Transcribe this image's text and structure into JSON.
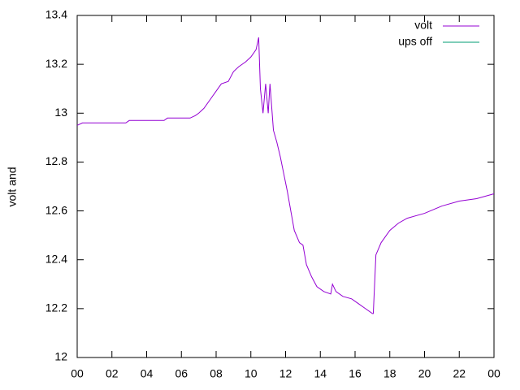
{
  "chart_data": {
    "type": "line",
    "ylabel": "volt and",
    "x": [
      0,
      0.3,
      1,
      2,
      2.8,
      3,
      4,
      5,
      5.2,
      6,
      6.5,
      6.8,
      7,
      7.3,
      7.6,
      8,
      8.3,
      8.7,
      9,
      9.3,
      9.7,
      10,
      10.3,
      10.45,
      10.55,
      10.7,
      10.85,
      11,
      11.1,
      11.3,
      11.5,
      11.7,
      11.9,
      12.1,
      12.3,
      12.5,
      12.8,
      13,
      13.2,
      13.5,
      13.8,
      14.2,
      14.6,
      14.7,
      14.9,
      15.3,
      15.8,
      16.2,
      16.6,
      17,
      17.05,
      17.2,
      17.5,
      18,
      18.5,
      19,
      20,
      21,
      22,
      23,
      24
    ],
    "series": [
      {
        "name": "volt",
        "color": "#9400d3",
        "values": [
          12.95,
          12.96,
          12.96,
          12.96,
          12.96,
          12.97,
          12.97,
          12.97,
          12.98,
          12.98,
          12.98,
          12.99,
          13.0,
          13.02,
          13.05,
          13.09,
          13.12,
          13.13,
          13.17,
          13.19,
          13.21,
          13.23,
          13.26,
          13.31,
          13.1,
          13.0,
          13.12,
          13.0,
          13.12,
          12.93,
          12.88,
          12.82,
          12.75,
          12.68,
          12.6,
          12.52,
          12.47,
          12.46,
          12.38,
          12.33,
          12.29,
          12.27,
          12.26,
          12.3,
          12.27,
          12.25,
          12.24,
          12.22,
          12.2,
          12.18,
          12.18,
          12.42,
          12.47,
          12.52,
          12.55,
          12.57,
          12.59,
          12.62,
          12.64,
          12.65,
          12.67
        ]
      },
      {
        "name": "ups off",
        "color": "#009e73",
        "values": [
          null,
          null,
          null,
          null,
          null,
          null,
          null,
          null,
          null,
          null,
          null,
          null,
          null,
          null,
          null,
          null,
          null,
          null,
          null,
          null,
          null,
          null,
          null,
          null,
          null,
          null,
          null,
          null,
          null,
          null,
          null,
          null,
          null,
          null,
          null,
          null,
          null,
          null,
          null,
          null,
          null,
          null,
          null,
          null,
          null,
          null,
          null,
          null,
          null,
          null,
          null,
          null,
          null,
          null,
          null,
          null,
          null,
          null,
          null,
          null,
          null
        ]
      }
    ],
    "xlim": [
      0,
      24
    ],
    "xticks": [
      {
        "value": 0,
        "label": "00"
      },
      {
        "value": 2,
        "label": "02"
      },
      {
        "value": 4,
        "label": "04"
      },
      {
        "value": 6,
        "label": "06"
      },
      {
        "value": 8,
        "label": "08"
      },
      10,
      12,
      14,
      16,
      18,
      20,
      22,
      {
        "value": 24,
        "label": "00"
      }
    ],
    "ylim": [
      12,
      13.4
    ],
    "yticks": [
      12,
      12.2,
      12.4,
      12.6,
      12.8,
      13,
      13.2,
      13.4
    ],
    "legend": "top-right"
  }
}
